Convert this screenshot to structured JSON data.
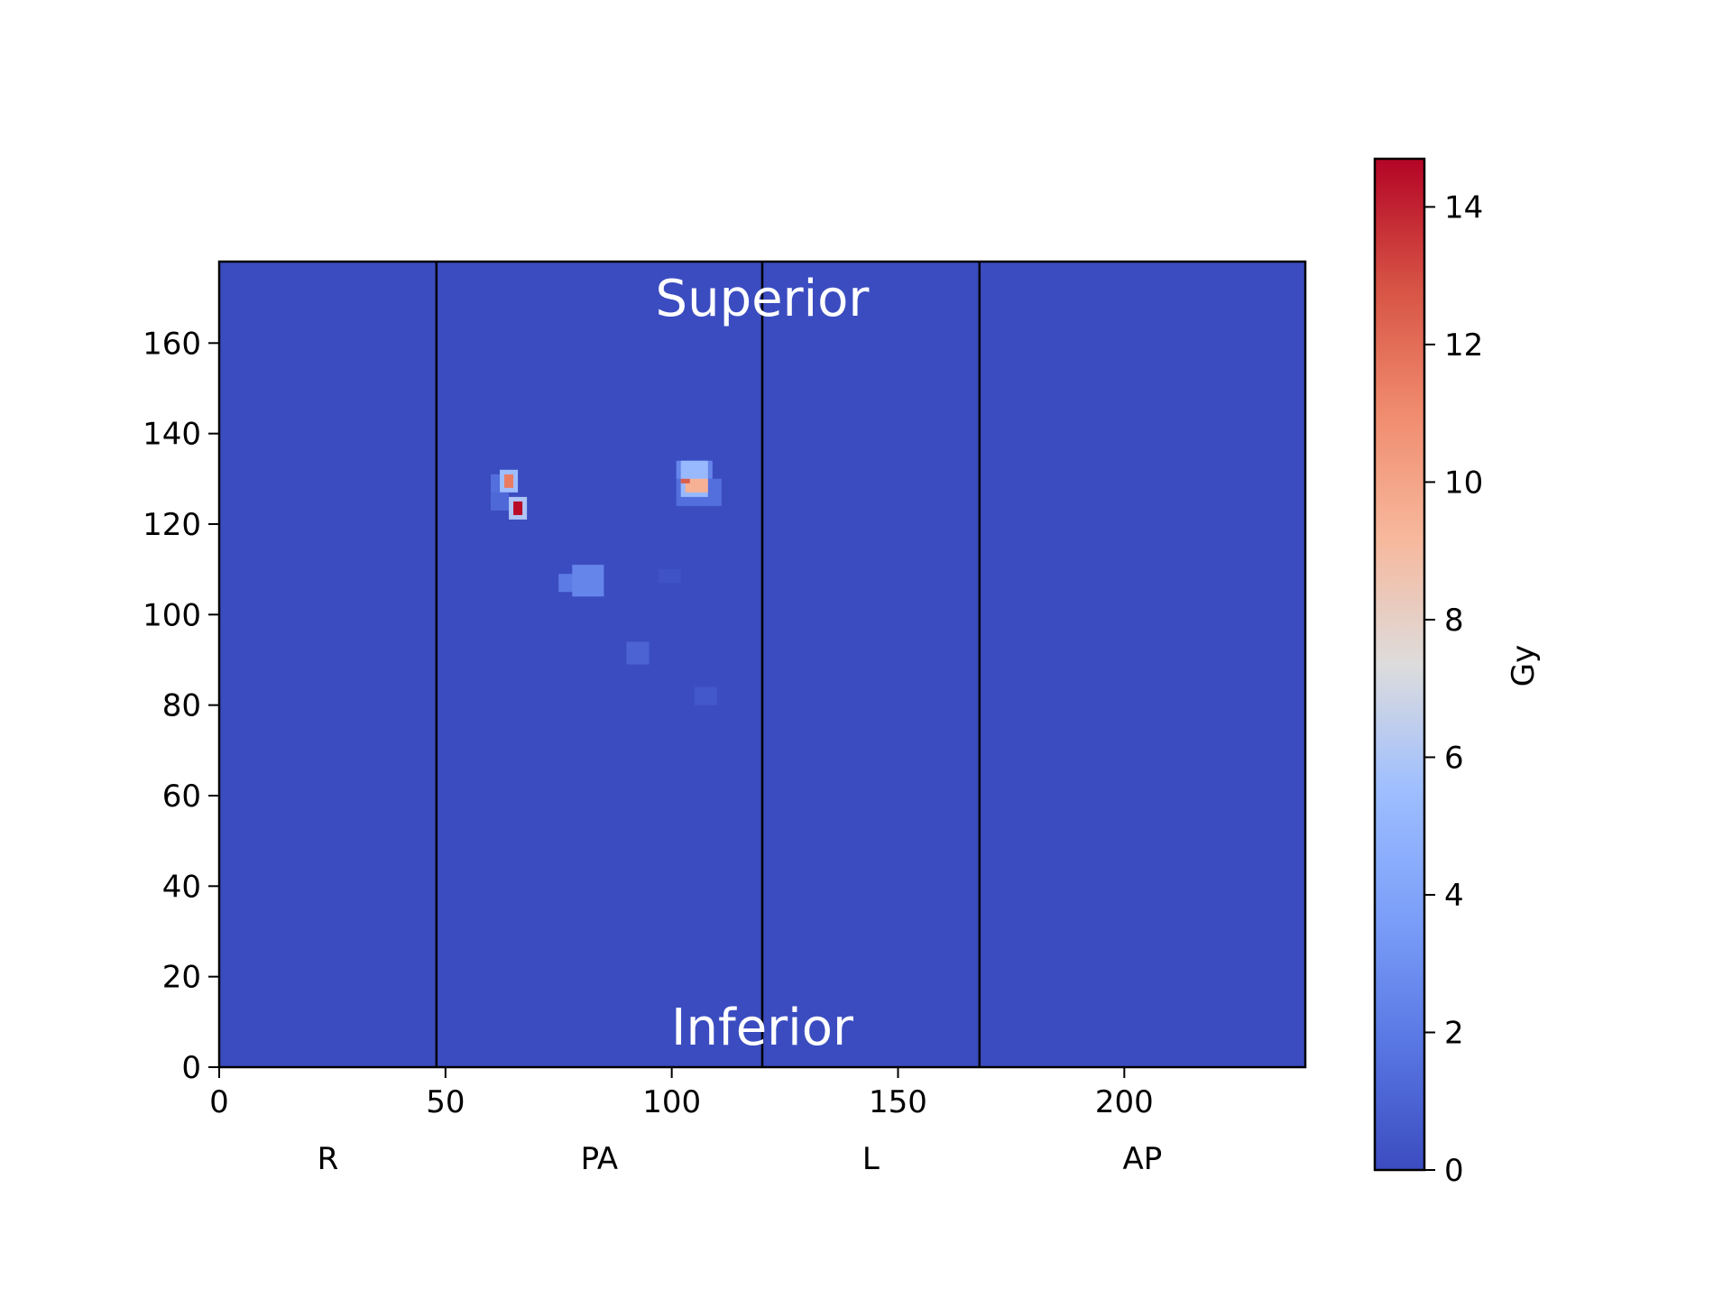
{
  "chart_data": {
    "type": "heatmap",
    "title": "",
    "xlabel": "",
    "ylabel": "",
    "xlim": [
      0,
      240
    ],
    "ylim": [
      0,
      178
    ],
    "x_ticks": [
      0,
      50,
      100,
      150,
      200
    ],
    "y_ticks": [
      0,
      20,
      40,
      60,
      80,
      100,
      120,
      140,
      160
    ],
    "background_value": 0,
    "view_dividers": [
      48,
      120,
      168
    ],
    "view_labels": [
      {
        "label": "R",
        "x": 24
      },
      {
        "label": "PA",
        "x": 84
      },
      {
        "label": "L",
        "x": 144
      },
      {
        "label": "AP",
        "x": 204
      }
    ],
    "annotations": [
      {
        "text": "Superior",
        "x": 120,
        "y": 170
      },
      {
        "text": "Inferior",
        "x": 120,
        "y": 9
      }
    ],
    "hotspots": [
      {
        "x0": 62,
        "x1": 66,
        "y0": 127,
        "y1": 132,
        "value": 5.5
      },
      {
        "x0": 63,
        "x1": 65,
        "y0": 128,
        "y1": 131,
        "value": 11.5
      },
      {
        "x0": 60,
        "x1": 62,
        "y0": 127,
        "y1": 131,
        "value": 1.5
      },
      {
        "x0": 60,
        "x1": 64,
        "y0": 123,
        "y1": 127,
        "value": 1.2
      },
      {
        "x0": 64,
        "x1": 68,
        "y0": 121,
        "y1": 126,
        "value": 6.0
      },
      {
        "x0": 65,
        "x1": 67,
        "y0": 122,
        "y1": 125,
        "value": 14.5
      },
      {
        "x0": 101,
        "x1": 109,
        "y0": 130,
        "y1": 134,
        "value": 2.5
      },
      {
        "x0": 101,
        "x1": 111,
        "y0": 124,
        "y1": 130,
        "value": 1.5
      },
      {
        "x0": 102,
        "x1": 108,
        "y0": 126,
        "y1": 134,
        "value": 5.2
      },
      {
        "x0": 103,
        "x1": 108,
        "y0": 127,
        "y1": 130,
        "value": 9.5
      },
      {
        "x0": 102,
        "x1": 104,
        "y0": 129,
        "y1": 130,
        "value": 12.5
      },
      {
        "x0": 75,
        "x1": 80,
        "y0": 105,
        "y1": 109,
        "value": 2.0
      },
      {
        "x0": 78,
        "x1": 85,
        "y0": 104,
        "y1": 111,
        "value": 2.5
      },
      {
        "x0": 90,
        "x1": 95,
        "y0": 89,
        "y1": 94,
        "value": 1.0
      },
      {
        "x0": 105,
        "x1": 110,
        "y0": 80,
        "y1": 84,
        "value": 0.5
      },
      {
        "x0": 97,
        "x1": 102,
        "y0": 107,
        "y1": 110,
        "value": 0.3
      }
    ],
    "colorbar": {
      "label": "Gy",
      "min": 0,
      "max": 14.7,
      "ticks": [
        0,
        2,
        4,
        6,
        8,
        10,
        12,
        14
      ],
      "colormap": "coolwarm"
    }
  }
}
